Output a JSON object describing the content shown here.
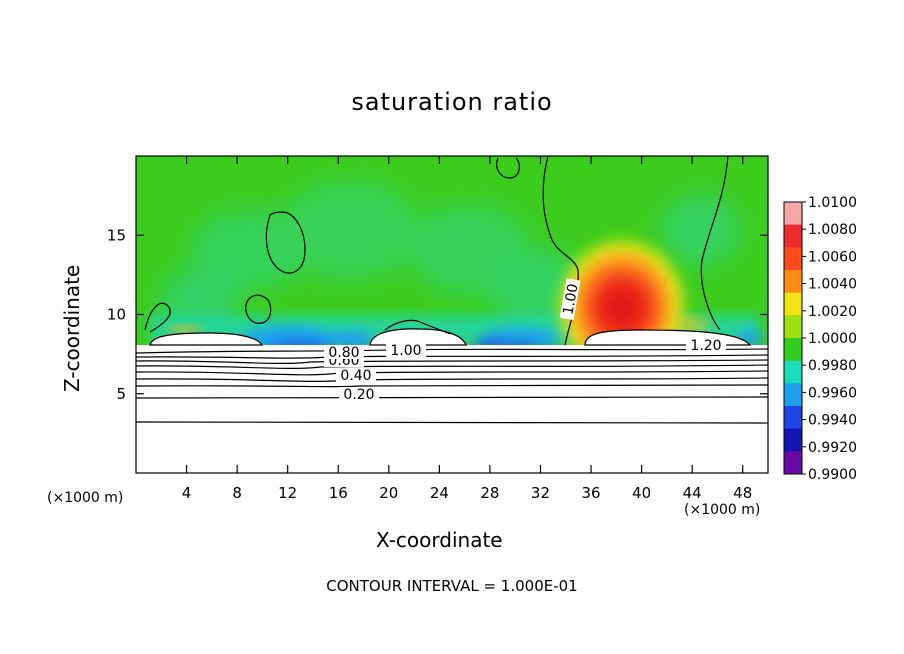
{
  "figure": {
    "title": "saturation ratio",
    "x_unit": "(×1000 m)",
    "contour_interval": "CONTOUR INTERVAL = 1.000E-01"
  },
  "chart_data": {
    "type": "heatmap",
    "title": "saturation ratio",
    "xlabel": "X-coordinate",
    "ylabel": "Z-coordinate",
    "x_unit": "(×1000 m)",
    "xlim": [
      0,
      50
    ],
    "ylim": [
      0,
      20
    ],
    "x_ticks": [
      4,
      8,
      12,
      16,
      20,
      24,
      28,
      32,
      36,
      40,
      44,
      48
    ],
    "y_ticks": [
      5,
      10,
      15
    ],
    "colorbar": {
      "levels": [
        "1.0100",
        "1.0080",
        "1.0060",
        "1.0040",
        "1.0020",
        "1.0000",
        "0.9980",
        "0.9960",
        "0.9940",
        "0.9920",
        "0.9900"
      ],
      "colors": [
        "#f6a8a8",
        "#ea2c2c",
        "#ff4a1a",
        "#ff8c14",
        "#f2e312",
        "#9fe012",
        "#32cc1e",
        "#19dcb8",
        "#1ea0f0",
        "#1e46e6",
        "#1414b4",
        "#6a0aa6"
      ]
    },
    "contour_labels": [
      "0.20",
      "0.40",
      "0.60",
      "0.80",
      "1.00",
      "1.00",
      "1.20"
    ],
    "contour_interval": "CONTOUR INTERVAL = 1.000E-01"
  }
}
